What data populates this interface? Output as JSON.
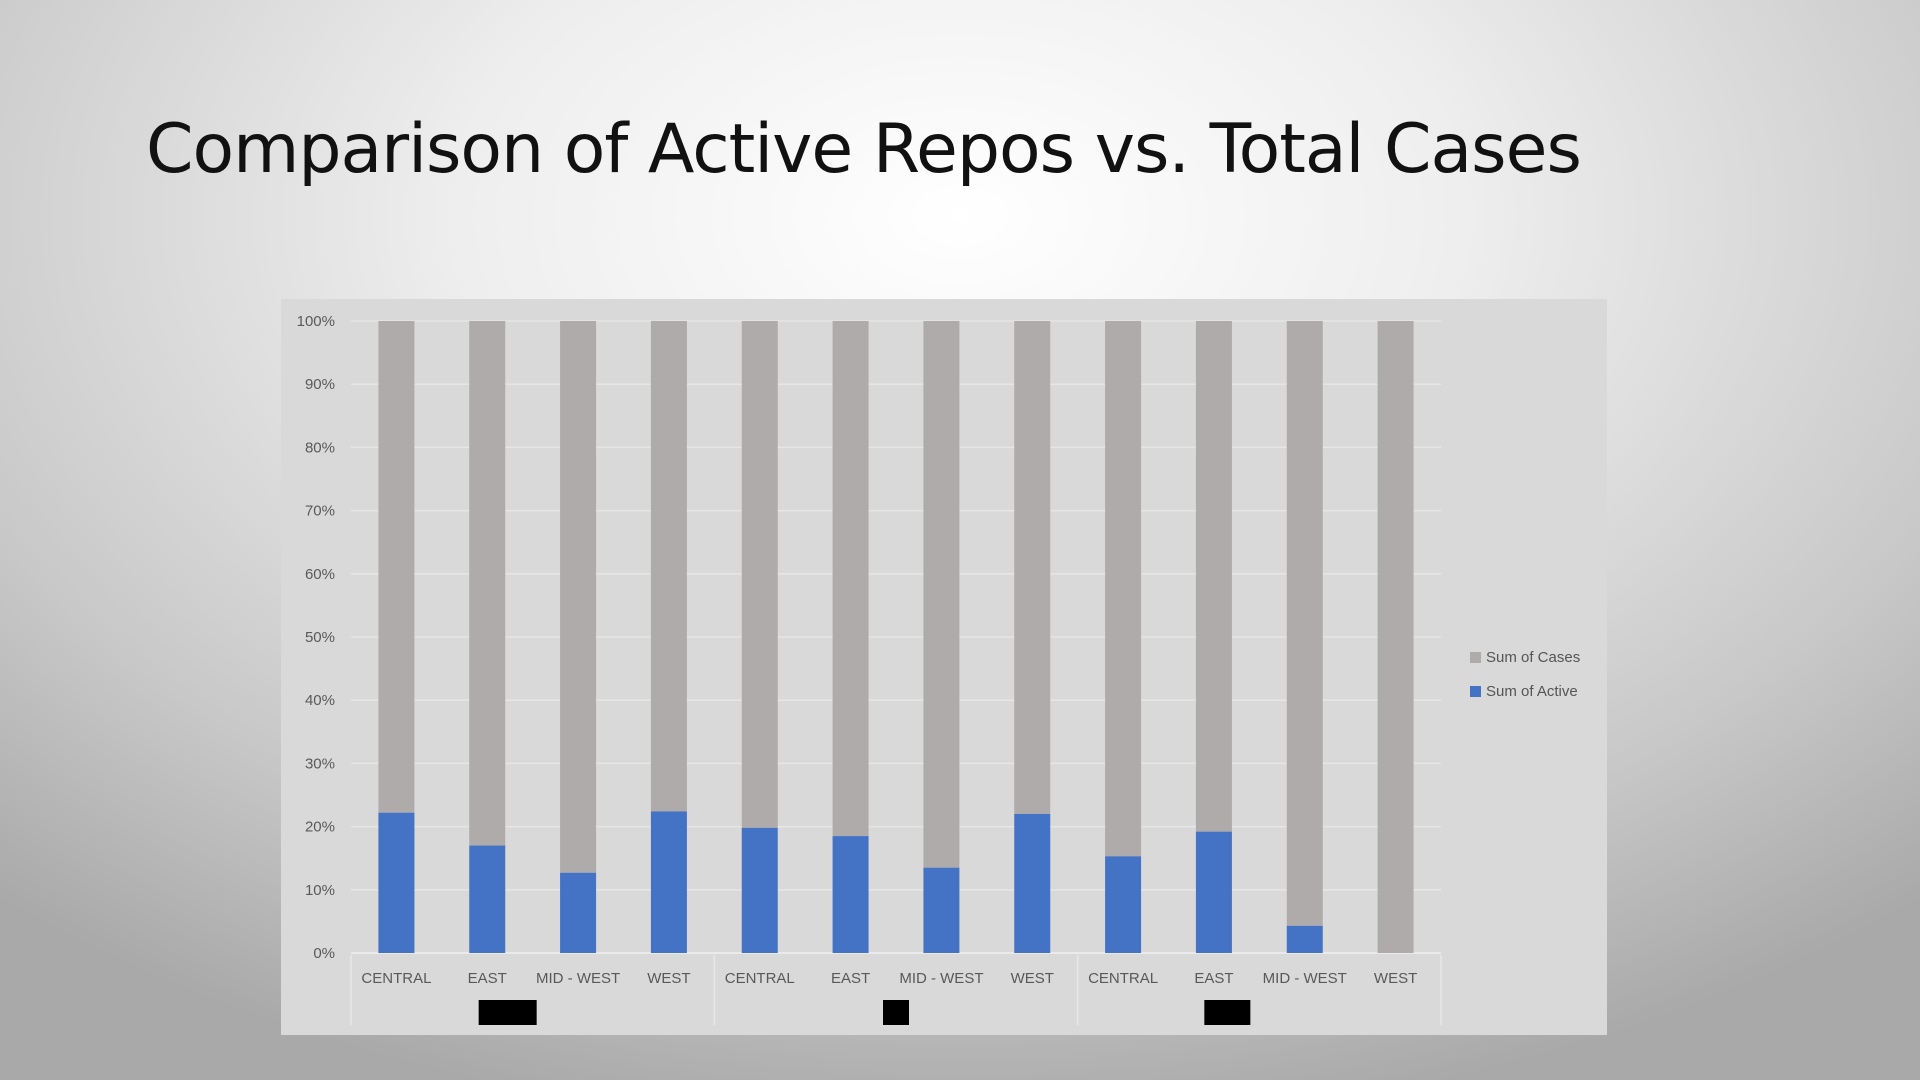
{
  "slide": {
    "title": "Comparison of Active Repos vs. Total Cases"
  },
  "chart_data": {
    "type": "bar",
    "stacked": true,
    "percent_stacked": true,
    "categories": [
      "CENTRAL",
      "EAST",
      "MID - WEST",
      "WEST",
      "CENTRAL",
      "EAST",
      "MID - WEST",
      "WEST",
      "CENTRAL",
      "EAST",
      "MID - WEST",
      "WEST"
    ],
    "groups": [
      {
        "label": "",
        "redacted": true,
        "count": 4
      },
      {
        "label": "",
        "redacted": true,
        "count": 4
      },
      {
        "label": "",
        "redacted": true,
        "count": 4
      }
    ],
    "series": [
      {
        "name": "Sum of Active",
        "color": "#4472c4",
        "values": [
          22.2,
          17.0,
          12.7,
          22.4,
          19.8,
          18.5,
          13.5,
          22.0,
          15.3,
          19.2,
          4.3,
          0
        ]
      },
      {
        "name": "Sum of Cases",
        "color": "#afabab",
        "values": [
          77.8,
          83.0,
          87.3,
          77.6,
          80.2,
          81.5,
          86.5,
          78.0,
          84.7,
          80.8,
          95.7,
          100
        ]
      }
    ],
    "ylim": [
      0,
      100
    ],
    "yticks": [
      "0%",
      "10%",
      "20%",
      "30%",
      "40%",
      "50%",
      "60%",
      "70%",
      "80%",
      "90%",
      "100%"
    ],
    "grid": true,
    "legend_position": "right",
    "title": "",
    "xlabel": "",
    "ylabel": ""
  }
}
